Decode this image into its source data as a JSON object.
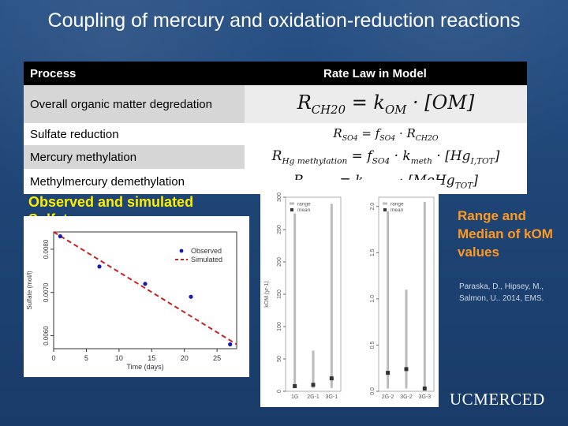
{
  "slide": {
    "title": "Coupling of mercury and oxidation-reduction reactions"
  },
  "table": {
    "headers": [
      "Process",
      "Rate Law in Model"
    ],
    "rows": [
      {
        "process": "Overall organic matter degredation"
      },
      {
        "process": "Sulfate reduction"
      },
      {
        "process": "Mercury methylation"
      },
      {
        "process": "Methylmercury demethylation"
      }
    ]
  },
  "observed_heading": "Observed and simulated Sulfate",
  "sulfate_plot": {
    "legend": [
      "Observed",
      "Simulated"
    ],
    "xlabel": "Time (days)",
    "ylabel": "Sulfate (mol/l)",
    "x_ticks": [
      "0",
      "5",
      "10",
      "15",
      "20",
      "25"
    ],
    "y_ticks": [
      "0.0060",
      "0.0070",
      "0.0080"
    ]
  },
  "kom_plot": {
    "ylabel": "kOM (yr-1)",
    "legend": [
      "range",
      "mean"
    ],
    "left_ticks": [
      "0",
      "50",
      "100",
      "150",
      "200",
      "250",
      "300"
    ],
    "left_categories": [
      "1G",
      "2G-1",
      "3G-1"
    ],
    "right_ticks": [
      "0.0",
      "0.5",
      "1.0",
      "1.5",
      "2.0"
    ],
    "right_categories": [
      "2G-2",
      "3G-2",
      "3G-3"
    ]
  },
  "side_title": "Range and Median of kOM values",
  "citation": "Paraska, D., Hipsey, M., Salmon, U.. 2014, EMS.",
  "logo": "UCMERCED",
  "chart_data": [
    {
      "type": "scatter",
      "title": "",
      "xlabel": "Time (days)",
      "ylabel": "Sulfate (mol/l)",
      "xlim": [
        0,
        28
      ],
      "ylim": [
        0.0057,
        0.0084
      ],
      "series": [
        {
          "name": "Observed",
          "x": [
            1,
            7,
            14,
            21,
            27
          ],
          "y": [
            0.0083,
            0.0076,
            0.0072,
            0.0069,
            0.0058
          ]
        },
        {
          "name": "Simulated",
          "x": [
            0,
            28
          ],
          "y": [
            0.0084,
            0.0058
          ]
        }
      ]
    },
    {
      "type": "bar",
      "ylabel": "kOM (yr-1)",
      "categories": [
        "1G",
        "2G-1",
        "3G-1"
      ],
      "ylim": [
        0,
        300
      ],
      "series": [
        {
          "name": "range",
          "min": [
            5,
            5,
            5
          ],
          "max": [
            275,
            63,
            290
          ]
        },
        {
          "name": "mean",
          "values": [
            8,
            10,
            20
          ]
        }
      ]
    },
    {
      "type": "bar",
      "ylabel": "kOM (yr-1)",
      "categories": [
        "2G-2",
        "3G-2",
        "3G-3"
      ],
      "ylim": [
        0,
        2.1
      ],
      "series": [
        {
          "name": "range",
          "min": [
            0.03,
            0.03,
            0.02
          ],
          "max": [
            1.95,
            1.1,
            2.05
          ]
        },
        {
          "name": "mean",
          "values": [
            0.2,
            0.24,
            0.03
          ]
        }
      ]
    }
  ]
}
